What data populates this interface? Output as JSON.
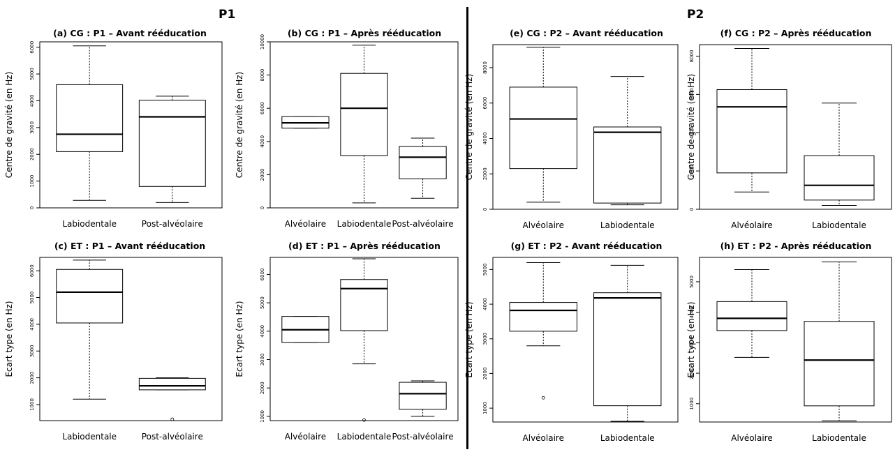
{
  "groups": [
    {
      "label": "P1"
    },
    {
      "label": "P2"
    }
  ],
  "chart_data": [
    {
      "type": "box",
      "title": "(a) CG : P1 – Avant rééducation",
      "ylabel": "Centre de gravité (en Hz)",
      "ylim": [
        0,
        6200
      ],
      "yticks": [
        0,
        1000,
        2000,
        3000,
        4000,
        5000,
        6000
      ],
      "boxes": [
        {
          "category": "Labiodentale",
          "min": 280,
          "q1": 2100,
          "median": 2750,
          "q3": 4600,
          "max": 6050,
          "outliers": []
        },
        {
          "category": "Post-alvéolaire",
          "min": 200,
          "q1": 800,
          "median": 3400,
          "q3": 4020,
          "max": 4170,
          "outliers": []
        }
      ]
    },
    {
      "type": "box",
      "title": "(b) CG : P1 – Après rééducation",
      "ylabel": "Centre de gravité (en Hz)",
      "ylim": [
        0,
        10000
      ],
      "yticks": [
        0,
        2000,
        4000,
        6000,
        8000,
        10000
      ],
      "boxes": [
        {
          "category": "Alvéolaire",
          "min": 4800,
          "q1": 4800,
          "median": 5120,
          "q3": 5500,
          "max": 5500,
          "outliers": []
        },
        {
          "category": "Labiodentale",
          "min": 300,
          "q1": 3150,
          "median": 6000,
          "q3": 8100,
          "max": 9800,
          "outliers": []
        },
        {
          "category": "Post-alvéolaire",
          "min": 580,
          "q1": 1750,
          "median": 3050,
          "q3": 3700,
          "max": 4200,
          "outliers": []
        }
      ]
    },
    {
      "type": "box",
      "title": "(c) ET : P1 – Avant rééducation",
      "ylabel": "Ecart type (en Hz)",
      "ylim": [
        400,
        6500
      ],
      "yticks": [
        1000,
        2000,
        3000,
        4000,
        5000,
        6000
      ],
      "boxes": [
        {
          "category": "Labiodentale",
          "min": 1200,
          "q1": 4050,
          "median": 5200,
          "q3": 6050,
          "max": 6400,
          "outliers": []
        },
        {
          "category": "Post-alvéolaire",
          "min": 1550,
          "q1": 1550,
          "median": 1700,
          "q3": 1980,
          "max": 2000,
          "outliers": [
            450
          ]
        }
      ]
    },
    {
      "type": "box",
      "title": "(d) ET : P1 – Après rééducation",
      "ylabel": "Ecart type (en Hz)",
      "ylim": [
        850,
        6600
      ],
      "yticks": [
        1000,
        2000,
        3000,
        4000,
        5000,
        6000
      ],
      "boxes": [
        {
          "category": "Alvéolaire",
          "min": 3600,
          "q1": 3600,
          "median": 4050,
          "q3": 4520,
          "max": 4520,
          "outliers": []
        },
        {
          "category": "Labiodentale",
          "min": 2850,
          "q1": 4020,
          "median": 5500,
          "q3": 5820,
          "max": 6550,
          "outliers": [
            870
          ]
        },
        {
          "category": "Post-alvéolaire",
          "min": 1000,
          "q1": 1250,
          "median": 1800,
          "q3": 2200,
          "max": 2250,
          "outliers": []
        }
      ]
    },
    {
      "type": "box",
      "title": "(e) CG : P2 – Avant rééducation",
      "ylabel": "Centre de gravité (en Hz)",
      "ylim": [
        0,
        9300
      ],
      "yticks": [
        0,
        2000,
        4000,
        6000,
        8000
      ],
      "boxes": [
        {
          "category": "Alvéolaire",
          "min": 400,
          "q1": 2300,
          "median": 5100,
          "q3": 6900,
          "max": 9150,
          "outliers": []
        },
        {
          "category": "Labiodentale",
          "min": 250,
          "q1": 350,
          "median": 4350,
          "q3": 4650,
          "max": 7500,
          "outliers": []
        }
      ]
    },
    {
      "type": "box",
      "title": "(f) CG : P2 – Après rééducation",
      "ylabel": "Centre de gravité (en Hz)",
      "ylim": [
        0,
        8600
      ],
      "yticks": [
        0,
        2000,
        4000,
        6000,
        8000
      ],
      "boxes": [
        {
          "category": "Alvéolaire",
          "min": 900,
          "q1": 1900,
          "median": 5350,
          "q3": 6250,
          "max": 8400,
          "outliers": []
        },
        {
          "category": "Labiodentale",
          "min": 200,
          "q1": 480,
          "median": 1250,
          "q3": 2800,
          "max": 5550,
          "outliers": []
        }
      ]
    },
    {
      "type": "box",
      "title": "(g) ET : P2 - Avant rééducation",
      "ylabel": "Ecart type (en Hz)",
      "ylim": [
        600,
        5350
      ],
      "yticks": [
        1000,
        2000,
        3000,
        4000,
        5000
      ],
      "boxes": [
        {
          "category": "Alvéolaire",
          "min": 2800,
          "q1": 3220,
          "median": 3820,
          "q3": 4050,
          "max": 5200,
          "outliers": [
            1300
          ]
        },
        {
          "category": "Labiodentale",
          "min": 620,
          "q1": 1070,
          "median": 4180,
          "q3": 4330,
          "max": 5120,
          "outliers": []
        }
      ]
    },
    {
      "type": "box",
      "title": "(h) ET : P2 - Après rééducation",
      "ylabel": "Ecart type (en Hz)",
      "ylim": [
        400,
        5800
      ],
      "yticks": [
        1000,
        2000,
        3000,
        4000,
        5000
      ],
      "boxes": [
        {
          "category": "Alvéolaire",
          "min": 2520,
          "q1": 3400,
          "median": 3800,
          "q3": 4350,
          "max": 5400,
          "outliers": []
        },
        {
          "category": "Labiodentale",
          "min": 440,
          "q1": 930,
          "median": 2430,
          "q3": 3700,
          "max": 5650,
          "outliers": []
        }
      ]
    }
  ]
}
